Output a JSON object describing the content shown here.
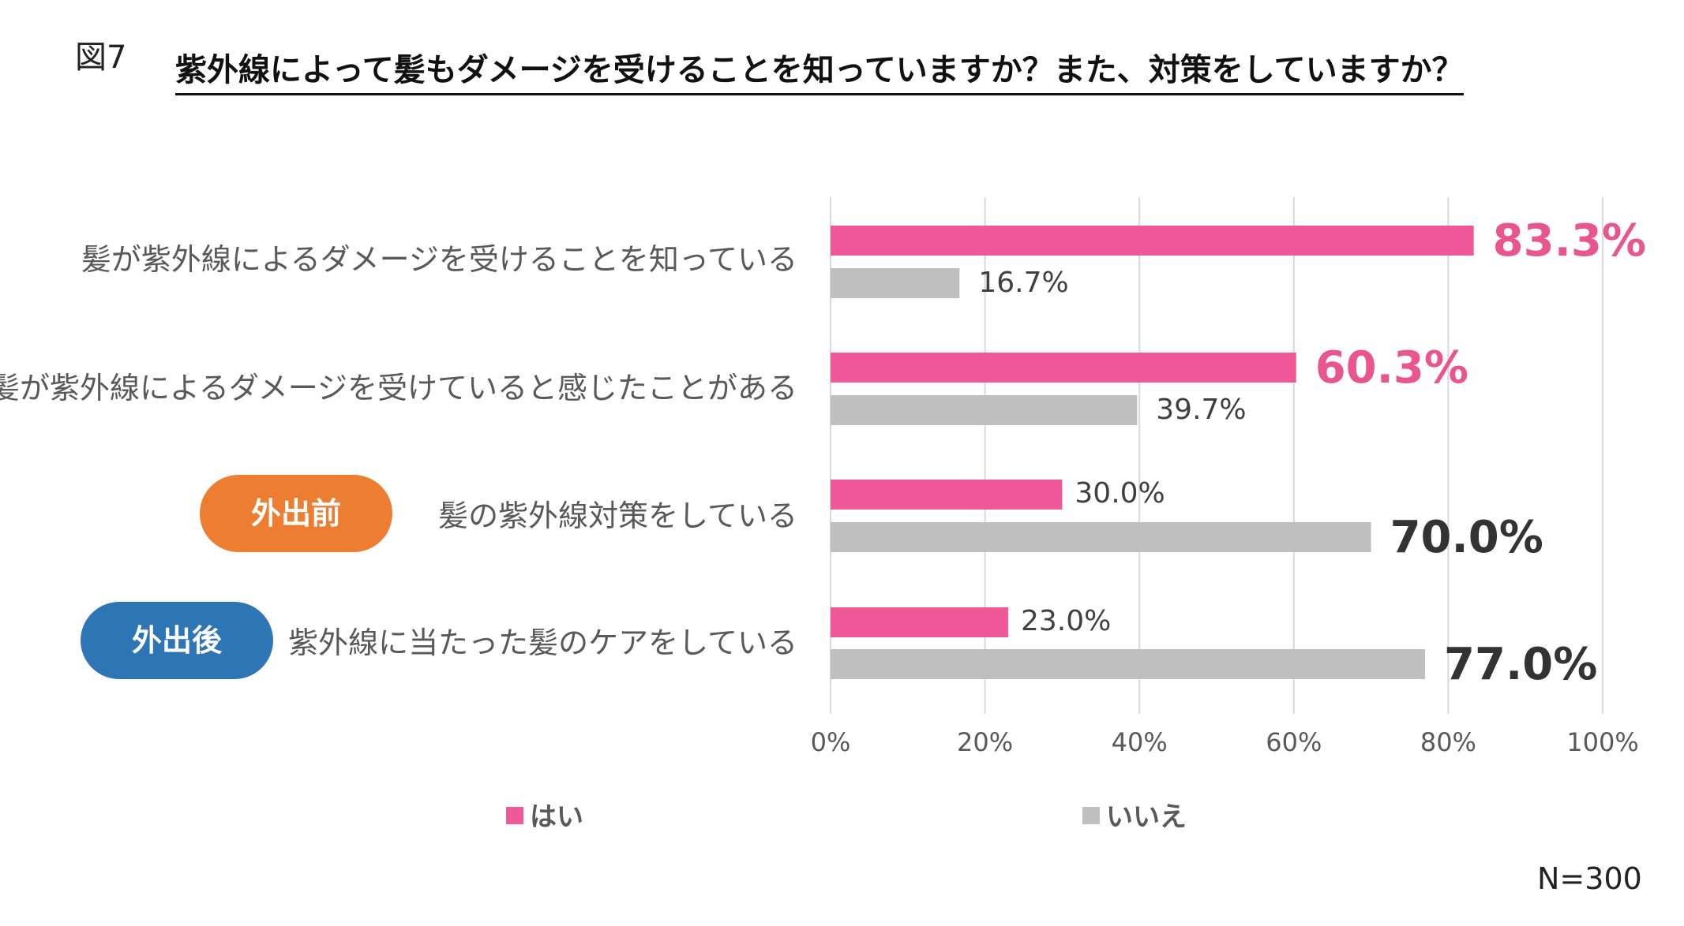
{
  "figure_label": "図7",
  "title": "紫外線によって髪もダメージを受けることを知っていますか？また、対策をしていますか？",
  "sample_note": "N=300",
  "colors": {
    "yes": "#F0589A",
    "no": "#BFBFBF",
    "grid": "#D9D9D9",
    "before": "#ED7D31",
    "after": "#2E75B6"
  },
  "chart_data": {
    "type": "bar",
    "orientation": "horizontal",
    "categories": [
      "髪が紫外線によるダメージを受けることを知っている",
      "髪が紫外線によるダメージを受けていると感じたことがある",
      "髪の紫外線対策をしている",
      "紫外線に当たった髪のケアをしている"
    ],
    "category_tags": [
      "",
      "",
      "外出前",
      "外出後"
    ],
    "series": [
      {
        "name": "はい",
        "values": [
          83.3,
          60.3,
          30.0,
          23.0
        ],
        "labels": [
          "83.3%",
          "60.3%",
          "30.0%",
          "23.0%"
        ]
      },
      {
        "name": "いいえ",
        "values": [
          16.7,
          39.7,
          70.0,
          77.0
        ],
        "labels": [
          "16.7%",
          "39.7%",
          "70.0%",
          "77.0%"
        ]
      }
    ],
    "xlim": [
      0,
      100
    ],
    "x_ticks": [
      "0%",
      "20%",
      "40%",
      "60%",
      "80%",
      "100%"
    ],
    "grid": true,
    "legend": "bottom"
  }
}
